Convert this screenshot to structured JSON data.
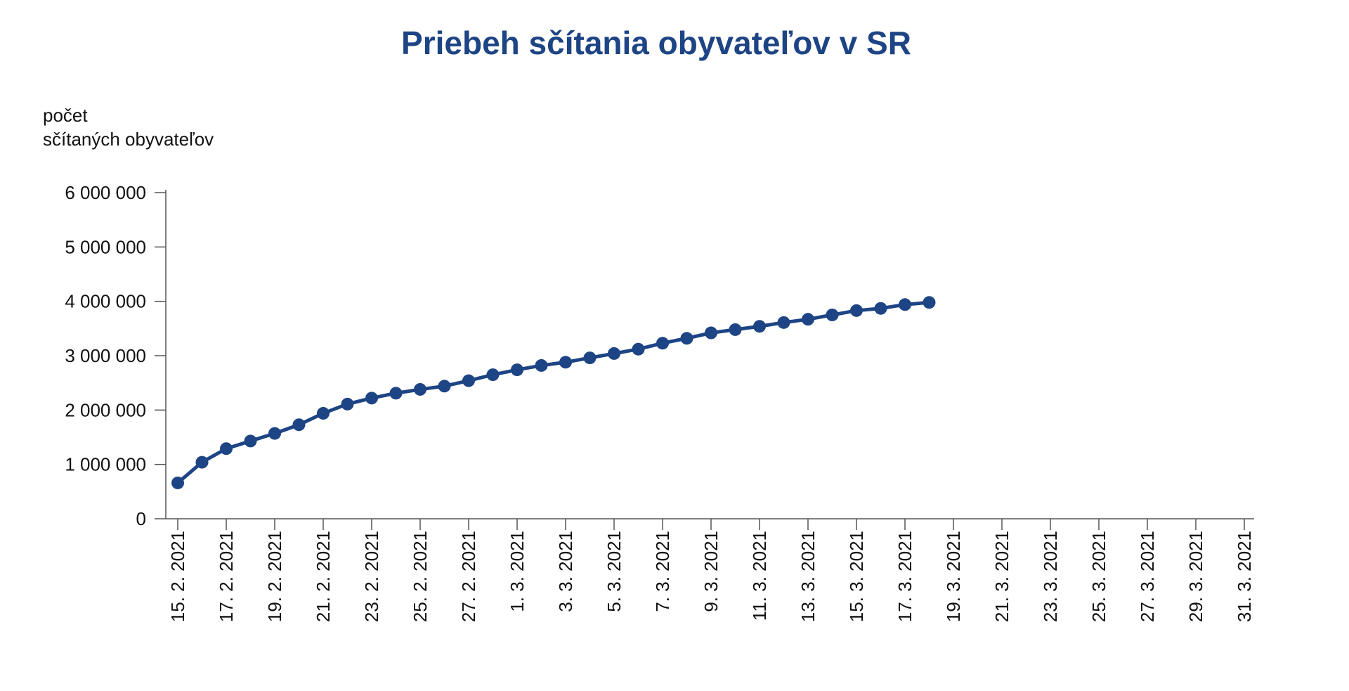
{
  "chart_data": {
    "type": "line",
    "title": "Priebeh sčítania obyvateľov v SR",
    "ylabel_lines": [
      "počet",
      "sčítaných obyvateľov"
    ],
    "xlabel": "",
    "ylim": [
      0,
      6000000
    ],
    "yticks": [
      0,
      1000000,
      2000000,
      3000000,
      4000000,
      5000000,
      6000000
    ],
    "ytick_labels": [
      "0",
      "1 000 000",
      "2 000 000",
      "3 000 000",
      "4 000 000",
      "5 000 000",
      "6 000 000"
    ],
    "x_range_days": 45,
    "xtick_labels": [
      "15. 2. 2021",
      "17. 2. 2021",
      "19. 2. 2021",
      "21. 2. 2021",
      "23. 2. 2021",
      "25. 2. 2021",
      "27. 2. 2021",
      "1. 3. 2021",
      "3. 3. 2021",
      "5. 3. 2021",
      "7. 3. 2021",
      "9. 3. 2021",
      "11. 3. 2021",
      "13. 3. 2021",
      "15. 3. 2021",
      "17. 3. 2021",
      "19. 3. 2021",
      "21. 3. 2021",
      "23. 3. 2021",
      "25. 3. 2021",
      "27. 3. 2021",
      "29. 3. 2021",
      "31. 3. 2021"
    ],
    "grid": false,
    "series": [
      {
        "name": "počet sčítaných obyvateľov",
        "color": "#1d4484",
        "start_date": "15. 2. 2021",
        "values": [
          660000,
          1040000,
          1290000,
          1430000,
          1570000,
          1730000,
          1940000,
          2110000,
          2220000,
          2310000,
          2380000,
          2440000,
          2540000,
          2650000,
          2740000,
          2820000,
          2880000,
          2960000,
          3040000,
          3120000,
          3230000,
          3320000,
          3420000,
          3480000,
          3540000,
          3610000,
          3670000,
          3750000,
          3830000,
          3870000,
          3940000,
          3980000
        ]
      }
    ]
  }
}
